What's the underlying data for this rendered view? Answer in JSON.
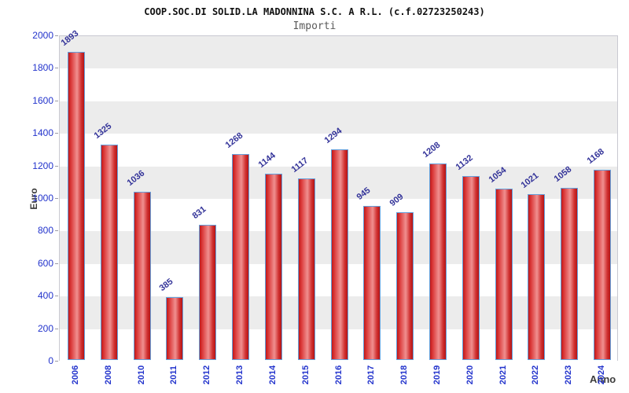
{
  "title": "COOP.SOC.DI SOLID.LA MADONNINA S.C. A R.L. (c.f.02723250243)",
  "subtitle": "Importi",
  "chart_data": {
    "type": "bar",
    "title": "COOP.SOC.DI SOLID.LA MADONNINA S.C. A R.L. (c.f.02723250243)",
    "subtitle": "Importi",
    "xlabel": "Anno",
    "ylabel": "Euro",
    "categories": [
      "2006",
      "2008",
      "2010",
      "2011",
      "2012",
      "2013",
      "2014",
      "2015",
      "2016",
      "2017",
      "2018",
      "2019",
      "2020",
      "2021",
      "2022",
      "2023",
      "2024"
    ],
    "values": [
      1893,
      1325,
      1036,
      385,
      831,
      1268,
      1144,
      1117,
      1294,
      945,
      909,
      1208,
      1132,
      1054,
      1021,
      1058,
      1168
    ],
    "ylim": [
      0,
      2000
    ],
    "ytick_step": 200,
    "grid": "alternating-horizontal-bands",
    "legend": "none",
    "value_labels": "above-bars-rotated",
    "colors": {
      "bar_fill_dark": "#c01818",
      "bar_fill_light": "#f09090",
      "bar_border": "#64a0dc",
      "tick_label": "#2233cc",
      "value_label": "#333399",
      "axis_title": "#3c3c3c",
      "band_gray": "#ececec",
      "band_white": "#ffffff",
      "plot_border": "#c9c9d1",
      "title_color": "#111111",
      "subtitle_color": "#5a5a5a"
    }
  }
}
